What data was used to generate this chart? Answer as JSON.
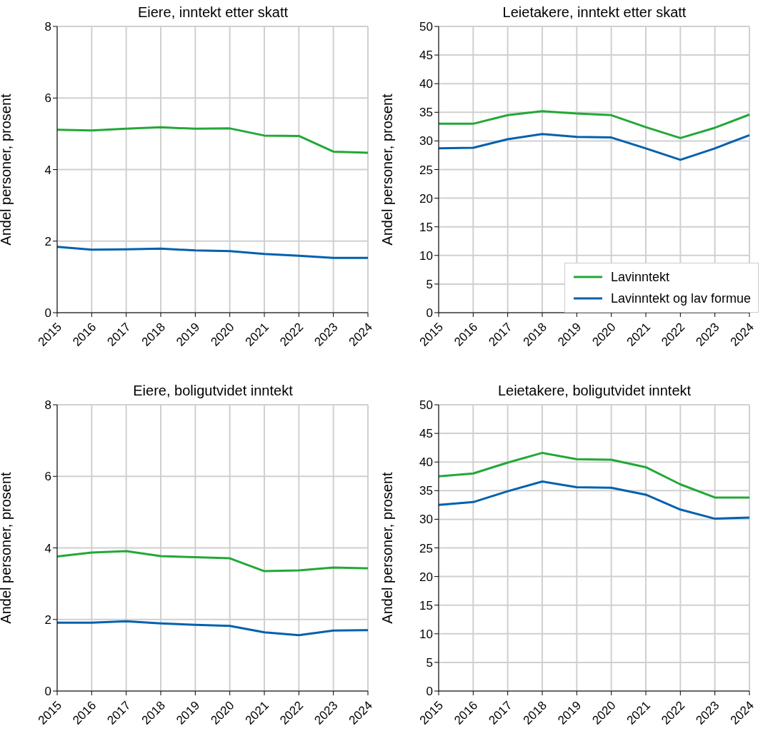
{
  "chart_data": [
    {
      "type": "line",
      "title": "Eiere, inntekt etter skatt",
      "ylabel": "Andel personer, prosent",
      "categories": [
        "2015",
        "2016",
        "2017",
        "2018",
        "2019",
        "2020",
        "2021",
        "2022",
        "2023",
        "2024"
      ],
      "ylim": [
        0,
        8
      ],
      "yticks": [
        0,
        2,
        4,
        6,
        8
      ],
      "grid": true,
      "marker": "none",
      "line_style": "solid",
      "series": [
        {
          "color": "#22a838",
          "values": [
            5.11,
            5.09,
            5.14,
            5.18,
            5.14,
            5.15,
            4.95,
            4.94,
            4.5,
            4.47
          ]
        },
        {
          "color": "#0061ad",
          "values": [
            1.84,
            1.76,
            1.77,
            1.79,
            1.74,
            1.72,
            1.64,
            1.59,
            1.53,
            1.53
          ]
        }
      ]
    },
    {
      "type": "line",
      "title": "Leietakere, inntekt etter skatt",
      "ylabel": "Andel personer, prosent",
      "categories": [
        "2015",
        "2016",
        "2017",
        "2018",
        "2019",
        "2020",
        "2021",
        "2022",
        "2023",
        "2024"
      ],
      "ylim": [
        0,
        50
      ],
      "yticks": [
        0,
        5,
        10,
        15,
        20,
        25,
        30,
        35,
        40,
        45,
        50
      ],
      "grid": true,
      "marker": "none",
      "line_style": "solid",
      "legend": "bottom right",
      "series": [
        {
          "name": "Lavinntekt",
          "color": "#22a838",
          "values": [
            33.0,
            33.0,
            34.5,
            35.2,
            34.8,
            34.5,
            32.4,
            30.5,
            32.3,
            34.6
          ]
        },
        {
          "name": "Lavinntekt og lav formue",
          "color": "#0061ad",
          "values": [
            28.7,
            28.8,
            30.3,
            31.2,
            30.7,
            30.6,
            28.7,
            26.7,
            28.7,
            31.0
          ]
        }
      ]
    },
    {
      "type": "line",
      "title": "Eiere, boligutvidet inntekt",
      "ylabel": "Andel personer, prosent",
      "categories": [
        "2015",
        "2016",
        "2017",
        "2018",
        "2019",
        "2020",
        "2021",
        "2022",
        "2023",
        "2024"
      ],
      "ylim": [
        0,
        8
      ],
      "yticks": [
        0,
        2,
        4,
        6,
        8
      ],
      "grid": true,
      "marker": "none",
      "line_style": "solid",
      "series": [
        {
          "color": "#22a838",
          "values": [
            3.76,
            3.87,
            3.91,
            3.77,
            3.74,
            3.71,
            3.35,
            3.37,
            3.45,
            3.43
          ]
        },
        {
          "color": "#0061ad",
          "values": [
            1.91,
            1.91,
            1.95,
            1.89,
            1.85,
            1.82,
            1.64,
            1.56,
            1.69,
            1.7
          ]
        }
      ]
    },
    {
      "type": "line",
      "title": "Leietakere, boligutvidet inntekt",
      "ylabel": "Andel personer, prosent",
      "categories": [
        "2015",
        "2016",
        "2017",
        "2018",
        "2019",
        "2020",
        "2021",
        "2022",
        "2023",
        "2024"
      ],
      "ylim": [
        0,
        50
      ],
      "yticks": [
        0,
        5,
        10,
        15,
        20,
        25,
        30,
        35,
        40,
        45,
        50
      ],
      "grid": true,
      "marker": "none",
      "line_style": "solid",
      "series": [
        {
          "color": "#22a838",
          "values": [
            37.5,
            38.0,
            39.9,
            41.6,
            40.5,
            40.4,
            39.1,
            36.1,
            33.8,
            33.8
          ]
        },
        {
          "color": "#0061ad",
          "values": [
            32.5,
            33.0,
            34.9,
            36.6,
            35.6,
            35.5,
            34.3,
            31.7,
            30.1,
            30.3
          ]
        }
      ]
    }
  ]
}
